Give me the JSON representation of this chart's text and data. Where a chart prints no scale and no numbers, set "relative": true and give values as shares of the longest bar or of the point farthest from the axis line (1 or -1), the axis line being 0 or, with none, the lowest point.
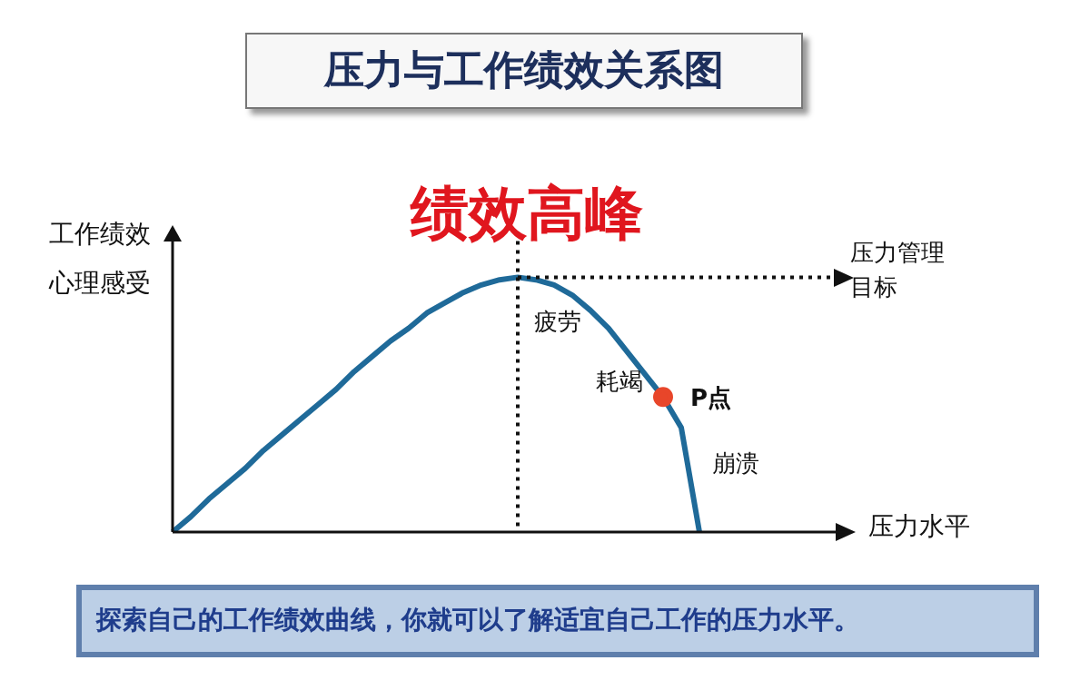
{
  "chart_data": {
    "type": "line",
    "title": "压力与工作绩效关系图",
    "ylabel": "工作绩效心理感受",
    "relative": true,
    "legend": false,
    "grid": false,
    "categories": [
      null,
      null,
      null,
      null,
      null,
      null,
      null,
      null,
      null,
      null,
      null,
      null,
      null,
      null,
      null,
      null,
      null,
      null,
      null,
      null,
      null,
      null,
      null,
      null,
      null,
      null,
      null,
      null,
      null,
      null
    ],
    "series": [
      {
        "type": "line",
        "color": "#1f6a99",
        "values": [
          0,
          0.06,
          0.13,
          0.19,
          0.25,
          0.32,
          0.38,
          0.44,
          0.5,
          0.56,
          0.63,
          0.69,
          0.75,
          0.8,
          0.86,
          0.9,
          0.94,
          0.97,
          0.99,
          1,
          0.99,
          0.97,
          0.93,
          0.87,
          0.8,
          0.71,
          0.62,
          0.53,
          0.41,
          0
        ],
        "colors": [
          null,
          null,
          null,
          null,
          null,
          null,
          null,
          null,
          null,
          null,
          null,
          null,
          null,
          null,
          null,
          null,
          null,
          null,
          null,
          null,
          null,
          null,
          null,
          null,
          null,
          null,
          null,
          "#e8462a",
          null,
          null
        ]
      }
    ],
    "annotations": [
      "绩效高峰",
      "压力管理目标",
      "疲劳",
      "耗竭",
      "P点",
      "崩溃",
      "压力水平",
      "探索自己的工作绩效曲线，你就可以了解适宜自己工作的压力水平。"
    ]
  }
}
